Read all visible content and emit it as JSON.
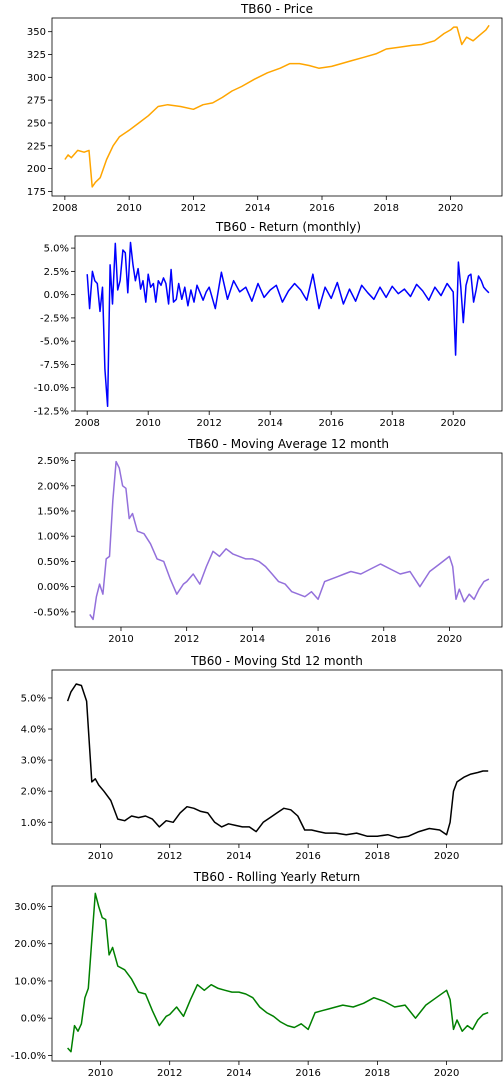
{
  "chart_data": [
    {
      "type": "line",
      "title": "TB60 - Price",
      "color": "#ffa500",
      "xlim": [
        2007.6,
        2021.6
      ],
      "ylim": [
        170,
        365
      ],
      "xticks": [
        2008,
        2010,
        2012,
        2014,
        2016,
        2018,
        2020
      ],
      "xticklabels": [
        "2008",
        "2010",
        "2012",
        "2014",
        "2016",
        "2018",
        "2020"
      ],
      "yticks": [
        175,
        200,
        225,
        250,
        275,
        300,
        325,
        350
      ],
      "yticklabels": [
        "175",
        "200",
        "225",
        "250",
        "275",
        "300",
        "325",
        "350"
      ],
      "x": [
        2008.0,
        2008.1,
        2008.2,
        2008.4,
        2008.6,
        2008.75,
        2008.85,
        2008.95,
        2009.1,
        2009.3,
        2009.5,
        2009.7,
        2010.0,
        2010.3,
        2010.6,
        2010.9,
        2011.2,
        2011.6,
        2012.0,
        2012.3,
        2012.6,
        2012.9,
        2013.2,
        2013.5,
        2013.9,
        2014.3,
        2014.7,
        2015.0,
        2015.3,
        2015.6,
        2015.9,
        2016.3,
        2016.6,
        2016.9,
        2017.3,
        2017.7,
        2018.0,
        2018.4,
        2018.8,
        2019.1,
        2019.5,
        2019.8,
        2020.0,
        2020.1,
        2020.2,
        2020.35,
        2020.5,
        2020.7,
        2020.9,
        2021.1,
        2021.2
      ],
      "y": [
        210,
        215,
        212,
        220,
        218,
        220,
        180,
        185,
        190,
        210,
        225,
        235,
        242,
        250,
        258,
        268,
        270,
        268,
        265,
        270,
        272,
        278,
        285,
        290,
        298,
        305,
        310,
        315,
        315,
        313,
        310,
        312,
        315,
        318,
        322,
        326,
        331,
        333,
        335,
        336,
        340,
        348,
        352,
        355,
        355,
        336,
        344,
        340,
        346,
        352,
        357
      ]
    },
    {
      "type": "line",
      "title": "TB60 - Return (monthly)",
      "color": "#0000ff",
      "xlim": [
        2007.6,
        2021.6
      ],
      "ylim": [
        -12.5,
        6.3
      ],
      "xticks": [
        2008,
        2010,
        2012,
        2014,
        2016,
        2018,
        2020
      ],
      "xticklabels": [
        "2008",
        "2010",
        "2012",
        "2014",
        "2016",
        "2018",
        "2020"
      ],
      "yticks": [
        5.0,
        2.5,
        0.0,
        -2.5,
        -5.0,
        -7.5,
        -10.0,
        -12.5
      ],
      "yticklabels": [
        "5.0%",
        "2.5%",
        "0.0%",
        "-2.5%",
        "-5.0%",
        "-7.5%",
        "-10.0%",
        "-12.5%"
      ],
      "x": [
        2008.0,
        2008.08,
        2008.17,
        2008.25,
        2008.33,
        2008.42,
        2008.5,
        2008.58,
        2008.67,
        2008.75,
        2008.83,
        2008.92,
        2009.0,
        2009.08,
        2009.17,
        2009.25,
        2009.33,
        2009.42,
        2009.5,
        2009.58,
        2009.67,
        2009.75,
        2009.83,
        2009.92,
        2010.0,
        2010.08,
        2010.17,
        2010.25,
        2010.33,
        2010.42,
        2010.5,
        2010.58,
        2010.67,
        2010.75,
        2010.83,
        2010.92,
        2011.0,
        2011.1,
        2011.2,
        2011.3,
        2011.4,
        2011.5,
        2011.6,
        2011.7,
        2011.8,
        2011.9,
        2012.0,
        2012.2,
        2012.4,
        2012.6,
        2012.8,
        2013.0,
        2013.2,
        2013.4,
        2013.6,
        2013.8,
        2014.0,
        2014.2,
        2014.4,
        2014.6,
        2014.8,
        2015.0,
        2015.2,
        2015.4,
        2015.6,
        2015.8,
        2016.0,
        2016.2,
        2016.4,
        2016.6,
        2016.8,
        2017.0,
        2017.2,
        2017.4,
        2017.6,
        2017.8,
        2018.0,
        2018.2,
        2018.4,
        2018.6,
        2018.8,
        2019.0,
        2019.2,
        2019.4,
        2019.6,
        2019.8,
        2020.0,
        2020.08,
        2020.17,
        2020.25,
        2020.33,
        2020.42,
        2020.5,
        2020.58,
        2020.67,
        2020.75,
        2020.83,
        2020.92,
        2021.0,
        2021.08,
        2021.17
      ],
      "y": [
        2.2,
        -1.5,
        2.5,
        1.5,
        1.2,
        -1.8,
        0.8,
        -8.0,
        -12.0,
        3.2,
        -1.0,
        5.5,
        0.5,
        1.5,
        4.8,
        4.5,
        0.2,
        5.6,
        3.2,
        1.5,
        2.8,
        0.6,
        1.5,
        -0.8,
        2.2,
        0.8,
        1.2,
        -0.8,
        1.5,
        1.0,
        1.8,
        1.2,
        -1.0,
        2.7,
        -0.8,
        -0.5,
        1.2,
        -0.5,
        0.8,
        -1.2,
        0.5,
        -0.8,
        1.0,
        0.2,
        -0.6,
        0.3,
        0.8,
        -1.5,
        2.4,
        -0.5,
        1.5,
        0.3,
        0.8,
        -0.7,
        1.2,
        -0.3,
        0.5,
        1.0,
        -0.8,
        0.4,
        1.2,
        0.5,
        -0.6,
        2.2,
        -1.5,
        0.8,
        -0.4,
        1.3,
        -1.0,
        0.6,
        -0.7,
        1.0,
        0.2,
        -0.5,
        0.8,
        -0.3,
        0.9,
        0.1,
        0.6,
        -0.2,
        1.1,
        0.4,
        -0.6,
        0.8,
        -0.1,
        1.2,
        0.3,
        -6.5,
        3.5,
        0.8,
        -3.0,
        1.0,
        2.0,
        2.2,
        -0.8,
        0.5,
        2.0,
        1.5,
        0.8,
        0.5,
        0.2
      ]
    },
    {
      "type": "line",
      "title": "TB60 - Moving Average 12 month",
      "color": "#9370db",
      "xlim": [
        2008.6,
        2021.6
      ],
      "ylim": [
        -0.8,
        2.65
      ],
      "xticks": [
        2010,
        2012,
        2014,
        2016,
        2018,
        2020
      ],
      "xticklabels": [
        "2010",
        "2012",
        "2014",
        "2016",
        "2018",
        "2020"
      ],
      "yticks": [
        2.5,
        2.0,
        1.5,
        1.0,
        0.5,
        0.0,
        -0.5
      ],
      "yticklabels": [
        "2.50%",
        "2.00%",
        "1.50%",
        "1.00%",
        "0.50%",
        "0.00%",
        "-0.50%"
      ],
      "x": [
        2009.05,
        2009.15,
        2009.25,
        2009.35,
        2009.45,
        2009.55,
        2009.65,
        2009.75,
        2009.85,
        2009.95,
        2010.05,
        2010.15,
        2010.25,
        2010.35,
        2010.5,
        2010.7,
        2010.9,
        2011.1,
        2011.3,
        2011.5,
        2011.7,
        2011.9,
        2012.0,
        2012.2,
        2012.4,
        2012.6,
        2012.8,
        2013.0,
        2013.2,
        2013.4,
        2013.6,
        2013.8,
        2014.0,
        2014.2,
        2014.4,
        2014.6,
        2014.8,
        2015.0,
        2015.2,
        2015.4,
        2015.6,
        2015.8,
        2016.0,
        2016.2,
        2016.4,
        2016.6,
        2016.8,
        2017.0,
        2017.3,
        2017.6,
        2017.9,
        2018.2,
        2018.5,
        2018.8,
        2019.1,
        2019.4,
        2019.7,
        2020.0,
        2020.1,
        2020.2,
        2020.3,
        2020.45,
        2020.6,
        2020.75,
        2020.9,
        2021.05,
        2021.2
      ],
      "y": [
        -0.55,
        -0.65,
        -0.2,
        0.05,
        -0.15,
        0.55,
        0.6,
        1.7,
        2.48,
        2.35,
        2.0,
        1.95,
        1.35,
        1.45,
        1.1,
        1.05,
        0.85,
        0.55,
        0.5,
        0.15,
        -0.15,
        0.05,
        0.1,
        0.25,
        0.05,
        0.4,
        0.7,
        0.6,
        0.75,
        0.65,
        0.6,
        0.55,
        0.55,
        0.5,
        0.4,
        0.25,
        0.1,
        0.05,
        -0.1,
        -0.15,
        -0.2,
        -0.1,
        -0.25,
        0.1,
        0.15,
        0.2,
        0.25,
        0.3,
        0.25,
        0.35,
        0.45,
        0.35,
        0.25,
        0.3,
        0.0,
        0.3,
        0.45,
        0.6,
        0.4,
        -0.25,
        -0.05,
        -0.3,
        -0.15,
        -0.25,
        -0.05,
        0.1,
        0.15
      ]
    },
    {
      "type": "line",
      "title": "TB60 - Moving Std 12 month",
      "color": "#000000",
      "xlim": [
        2008.6,
        2021.6
      ],
      "ylim": [
        0.3,
        5.9
      ],
      "xticks": [
        2010,
        2012,
        2014,
        2016,
        2018,
        2020
      ],
      "xticklabels": [
        "2010",
        "2012",
        "2014",
        "2016",
        "2018",
        "2020"
      ],
      "yticks": [
        5.0,
        4.0,
        3.0,
        2.0,
        1.0
      ],
      "yticklabels": [
        "5.0%",
        "4.0%",
        "3.0%",
        "2.0%",
        "1.0%"
      ],
      "x": [
        2009.05,
        2009.15,
        2009.3,
        2009.45,
        2009.6,
        2009.75,
        2009.85,
        2009.95,
        2010.1,
        2010.3,
        2010.5,
        2010.7,
        2010.9,
        2011.1,
        2011.3,
        2011.5,
        2011.7,
        2011.9,
        2012.1,
        2012.3,
        2012.5,
        2012.7,
        2012.9,
        2013.1,
        2013.3,
        2013.5,
        2013.7,
        2013.9,
        2014.1,
        2014.3,
        2014.5,
        2014.7,
        2014.9,
        2015.1,
        2015.3,
        2015.5,
        2015.7,
        2015.9,
        2016.1,
        2016.3,
        2016.5,
        2016.8,
        2017.1,
        2017.4,
        2017.7,
        2018.0,
        2018.3,
        2018.6,
        2018.9,
        2019.2,
        2019.5,
        2019.8,
        2020.0,
        2020.1,
        2020.2,
        2020.3,
        2020.5,
        2020.7,
        2020.9,
        2021.05,
        2021.2
      ],
      "y": [
        4.9,
        5.2,
        5.45,
        5.4,
        4.9,
        2.3,
        2.4,
        2.2,
        2.0,
        1.7,
        1.1,
        1.05,
        1.2,
        1.15,
        1.2,
        1.1,
        0.85,
        1.05,
        1.0,
        1.3,
        1.5,
        1.45,
        1.35,
        1.3,
        1.0,
        0.85,
        0.95,
        0.9,
        0.85,
        0.85,
        0.7,
        1.0,
        1.15,
        1.3,
        1.45,
        1.4,
        1.2,
        0.75,
        0.75,
        0.7,
        0.65,
        0.65,
        0.6,
        0.65,
        0.55,
        0.55,
        0.6,
        0.5,
        0.55,
        0.7,
        0.8,
        0.75,
        0.6,
        1.0,
        2.0,
        2.3,
        2.45,
        2.55,
        2.6,
        2.65,
        2.65
      ]
    },
    {
      "type": "line",
      "title": "TB60 - Rolling Yearly Return",
      "color": "#008000",
      "xlim": [
        2008.6,
        2021.6
      ],
      "ylim": [
        -11.5,
        35.5
      ],
      "xticks": [
        2010,
        2012,
        2014,
        2016,
        2018,
        2020
      ],
      "xticklabels": [
        "2010",
        "2012",
        "2014",
        "2016",
        "2018",
        "2020"
      ],
      "yticks": [
        30.0,
        20.0,
        10.0,
        0.0,
        -10.0
      ],
      "yticklabels": [
        "30.0%",
        "20.0%",
        "10.0%",
        "0.0%",
        "-10.0%"
      ],
      "x": [
        2009.05,
        2009.15,
        2009.25,
        2009.35,
        2009.45,
        2009.55,
        2009.65,
        2009.75,
        2009.85,
        2009.95,
        2010.05,
        2010.15,
        2010.25,
        2010.35,
        2010.5,
        2010.7,
        2010.9,
        2011.1,
        2011.3,
        2011.5,
        2011.7,
        2011.9,
        2012.0,
        2012.2,
        2012.4,
        2012.6,
        2012.8,
        2013.0,
        2013.2,
        2013.4,
        2013.6,
        2013.8,
        2014.0,
        2014.2,
        2014.4,
        2014.6,
        2014.8,
        2015.0,
        2015.2,
        2015.4,
        2015.6,
        2015.8,
        2016.0,
        2016.2,
        2016.4,
        2016.6,
        2016.8,
        2017.0,
        2017.3,
        2017.6,
        2017.9,
        2018.2,
        2018.5,
        2018.8,
        2019.1,
        2019.4,
        2019.7,
        2020.0,
        2020.1,
        2020.2,
        2020.3,
        2020.45,
        2020.6,
        2020.75,
        2020.9,
        2021.05,
        2021.2
      ],
      "y": [
        -8.0,
        -9.0,
        -2.0,
        -3.5,
        -1.5,
        5.5,
        8.0,
        21.0,
        33.5,
        30.0,
        27.0,
        26.5,
        17.0,
        19.0,
        14.0,
        13.0,
        10.5,
        7.0,
        6.5,
        2.0,
        -2.0,
        0.5,
        1.0,
        3.0,
        0.5,
        5.0,
        9.0,
        7.5,
        9.0,
        8.0,
        7.5,
        7.0,
        7.0,
        6.5,
        5.5,
        3.0,
        1.5,
        0.5,
        -1.0,
        -2.0,
        -2.5,
        -1.5,
        -3.0,
        1.5,
        2.0,
        2.5,
        3.0,
        3.5,
        3.0,
        4.0,
        5.5,
        4.5,
        3.0,
        3.5,
        0.0,
        3.5,
        5.5,
        7.5,
        5.0,
        -3.0,
        -0.5,
        -3.5,
        -2.0,
        -3.0,
        -0.5,
        1.0,
        1.5
      ]
    }
  ]
}
